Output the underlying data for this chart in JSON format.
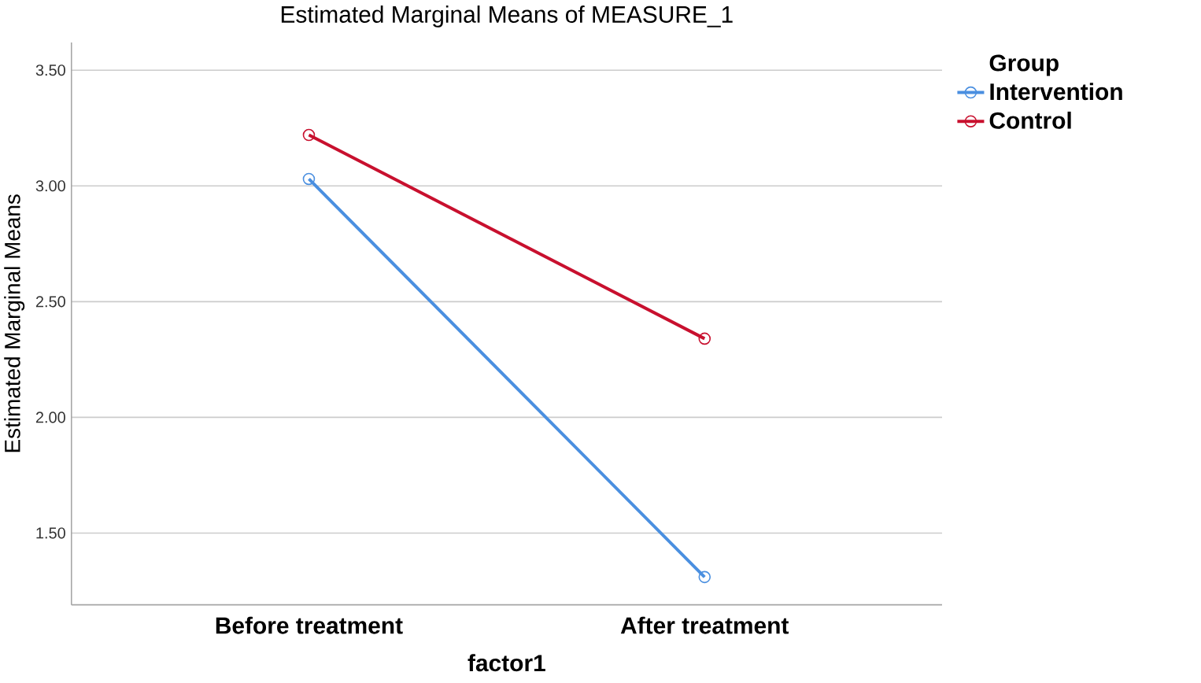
{
  "chart_data": {
    "type": "line",
    "title": "Estimated Marginal Means of MEASURE_1",
    "xlabel": "factor1",
    "ylabel": "Estimated Marginal Means",
    "legend_title": "Group",
    "categories": [
      "Before treatment",
      "After treatment"
    ],
    "series": [
      {
        "name": "Intervention",
        "color": "#4a8fe0",
        "values": [
          3.03,
          1.31
        ]
      },
      {
        "name": "Control",
        "color": "#c8102e",
        "values": [
          3.22,
          2.34
        ]
      }
    ],
    "ylim": [
      1.19,
      3.62
    ],
    "yticks": [
      {
        "value": 1.5,
        "label": "1.50"
      },
      {
        "value": 2.0,
        "label": "2.00"
      },
      {
        "value": 2.5,
        "label": "2.50"
      },
      {
        "value": 3.0,
        "label": "3.00"
      },
      {
        "value": 3.5,
        "label": "3.50"
      }
    ],
    "grid": "y",
    "legend": "top right",
    "marker": "circle",
    "line_style": "solid"
  }
}
